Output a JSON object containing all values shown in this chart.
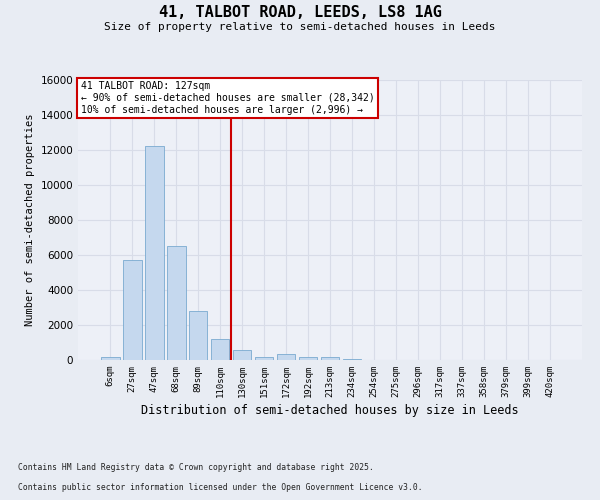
{
  "title_line1": "41, TALBOT ROAD, LEEDS, LS8 1AG",
  "title_line2": "Size of property relative to semi-detached houses in Leeds",
  "xlabel": "Distribution of semi-detached houses by size in Leeds",
  "ylabel": "Number of semi-detached properties",
  "footer_line1": "Contains HM Land Registry data © Crown copyright and database right 2025.",
  "footer_line2": "Contains public sector information licensed under the Open Government Licence v3.0.",
  "bar_labels": [
    "6sqm",
    "27sqm",
    "47sqm",
    "68sqm",
    "89sqm",
    "110sqm",
    "130sqm",
    "151sqm",
    "172sqm",
    "192sqm",
    "213sqm",
    "234sqm",
    "254sqm",
    "275sqm",
    "296sqm",
    "317sqm",
    "337sqm",
    "358sqm",
    "379sqm",
    "399sqm",
    "420sqm"
  ],
  "bar_values": [
    200,
    5700,
    12200,
    6500,
    2800,
    1200,
    600,
    200,
    350,
    175,
    150,
    80,
    25,
    20,
    12,
    5,
    3,
    2,
    1,
    0,
    0
  ],
  "bar_color": "#c5d8ee",
  "bar_edge_color": "#7aaad0",
  "vline_color": "#cc0000",
  "vline_x_idx": 6.0,
  "annotation_title": "41 TALBOT ROAD: 127sqm",
  "annotation_line2": "← 90% of semi-detached houses are smaller (28,342)",
  "annotation_line3": "10% of semi-detached houses are larger (2,996) →",
  "ylim": [
    0,
    16000
  ],
  "yticks": [
    0,
    2000,
    4000,
    6000,
    8000,
    10000,
    12000,
    14000,
    16000
  ],
  "fig_bg": "#e8ecf3",
  "axes_bg": "#edf0f7",
  "grid_color": "#d8dce8"
}
